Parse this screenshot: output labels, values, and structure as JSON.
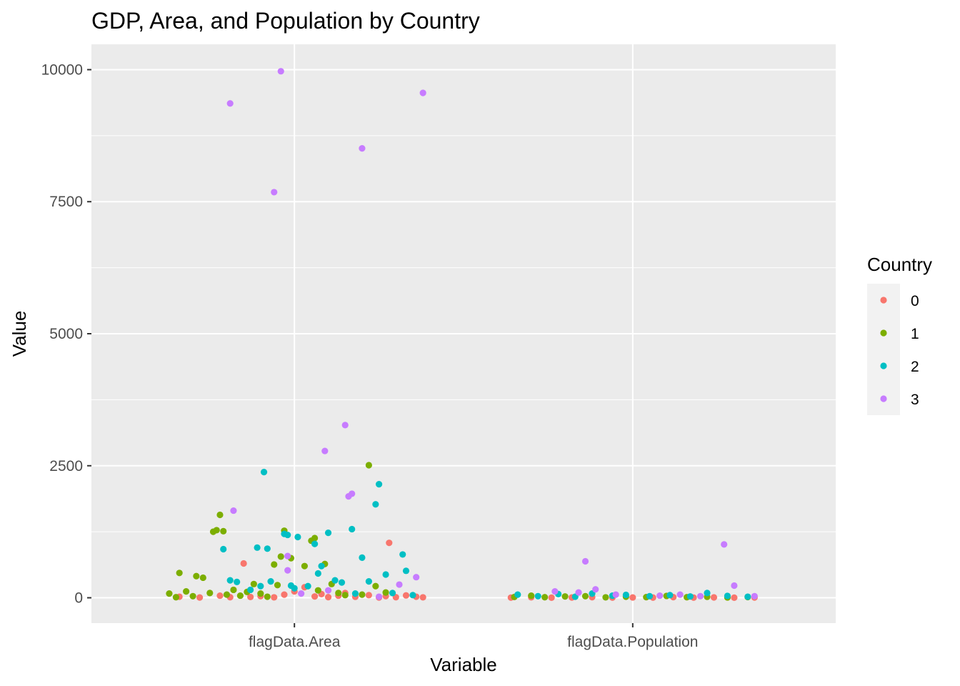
{
  "chart_data": {
    "type": "scatter",
    "title": "GDP, Area, and Population by Country",
    "xlabel": "Variable",
    "ylabel": "Value",
    "categories": [
      "flagData.Area",
      "flagData.Population"
    ],
    "y_ticks": [
      0,
      2500,
      5000,
      7500,
      10000
    ],
    "y_tick_labels": [
      "0",
      "2500",
      "5000",
      "7500",
      "10000"
    ],
    "ylim": [
      -480,
      10480
    ],
    "grid": true,
    "legend": {
      "title": "Country",
      "position": "right",
      "entries": [
        "0",
        "1",
        "2",
        "3"
      ]
    },
    "colors": {
      "0": "#F8766D",
      "1": "#7CAE00",
      "2": "#00BFC4",
      "3": "#C77CFF",
      "panel": "#EBEBEB",
      "grid": "#FFFFFF"
    },
    "series": [
      {
        "name": "0",
        "points": [
          [
            "flagData.Area",
            -0.34,
            20
          ],
          [
            "flagData.Area",
            -0.28,
            5
          ],
          [
            "flagData.Area",
            -0.22,
            40
          ],
          [
            "flagData.Area",
            -0.19,
            10
          ],
          [
            "flagData.Area",
            -0.15,
            650
          ],
          [
            "flagData.Area",
            -0.13,
            15
          ],
          [
            "flagData.Area",
            -0.1,
            30
          ],
          [
            "flagData.Area",
            -0.06,
            8
          ],
          [
            "flagData.Area",
            -0.03,
            60
          ],
          [
            "flagData.Area",
            0.0,
            120
          ],
          [
            "flagData.Area",
            0.03,
            200
          ],
          [
            "flagData.Area",
            0.06,
            25
          ],
          [
            "flagData.Area",
            0.08,
            70
          ],
          [
            "flagData.Area",
            0.1,
            12
          ],
          [
            "flagData.Area",
            0.13,
            40
          ],
          [
            "flagData.Area",
            0.15,
            90
          ],
          [
            "flagData.Area",
            0.18,
            18
          ],
          [
            "flagData.Area",
            0.22,
            50
          ],
          [
            "flagData.Area",
            0.25,
            5
          ],
          [
            "flagData.Area",
            0.27,
            30
          ],
          [
            "flagData.Area",
            0.28,
            1040
          ],
          [
            "flagData.Area",
            0.3,
            10
          ],
          [
            "flagData.Area",
            0.33,
            45
          ],
          [
            "flagData.Area",
            0.36,
            20
          ],
          [
            "flagData.Area",
            0.38,
            8
          ],
          [
            "flagData.Population",
            -0.36,
            3
          ],
          [
            "flagData.Population",
            -0.3,
            8
          ],
          [
            "flagData.Population",
            -0.24,
            2
          ],
          [
            "flagData.Population",
            -0.18,
            5
          ],
          [
            "flagData.Population",
            -0.12,
            10
          ],
          [
            "flagData.Population",
            -0.06,
            3
          ],
          [
            "flagData.Population",
            0.0,
            6
          ],
          [
            "flagData.Population",
            0.06,
            4
          ],
          [
            "flagData.Population",
            0.12,
            12
          ],
          [
            "flagData.Population",
            0.18,
            3
          ],
          [
            "flagData.Population",
            0.24,
            7
          ],
          [
            "flagData.Population",
            0.3,
            2
          ],
          [
            "flagData.Population",
            0.36,
            5
          ]
        ]
      },
      {
        "name": "1",
        "points": [
          [
            "flagData.Area",
            -0.37,
            80
          ],
          [
            "flagData.Area",
            -0.35,
            10
          ],
          [
            "flagData.Area",
            -0.34,
            470
          ],
          [
            "flagData.Area",
            -0.32,
            120
          ],
          [
            "flagData.Area",
            -0.3,
            30
          ],
          [
            "flagData.Area",
            -0.29,
            410
          ],
          [
            "flagData.Area",
            -0.27,
            380
          ],
          [
            "flagData.Area",
            -0.25,
            90
          ],
          [
            "flagData.Area",
            -0.24,
            1250
          ],
          [
            "flagData.Area",
            -0.23,
            1280
          ],
          [
            "flagData.Area",
            -0.22,
            1570
          ],
          [
            "flagData.Area",
            -0.21,
            1260
          ],
          [
            "flagData.Area",
            -0.2,
            60
          ],
          [
            "flagData.Area",
            -0.18,
            150
          ],
          [
            "flagData.Area",
            -0.16,
            40
          ],
          [
            "flagData.Area",
            -0.14,
            110
          ],
          [
            "flagData.Area",
            -0.12,
            260
          ],
          [
            "flagData.Area",
            -0.1,
            80
          ],
          [
            "flagData.Area",
            -0.08,
            20
          ],
          [
            "flagData.Area",
            -0.06,
            630
          ],
          [
            "flagData.Area",
            -0.05,
            240
          ],
          [
            "flagData.Area",
            -0.04,
            780
          ],
          [
            "flagData.Area",
            -0.03,
            1270
          ],
          [
            "flagData.Area",
            -0.01,
            750
          ],
          [
            "flagData.Area",
            0.03,
            600
          ],
          [
            "flagData.Area",
            0.05,
            1080
          ],
          [
            "flagData.Area",
            0.06,
            1130
          ],
          [
            "flagData.Area",
            0.07,
            140
          ],
          [
            "flagData.Area",
            0.09,
            640
          ],
          [
            "flagData.Area",
            0.11,
            260
          ],
          [
            "flagData.Area",
            0.13,
            90
          ],
          [
            "flagData.Area",
            0.15,
            50
          ],
          [
            "flagData.Area",
            0.2,
            60
          ],
          [
            "flagData.Area",
            0.22,
            2510
          ],
          [
            "flagData.Area",
            0.24,
            220
          ],
          [
            "flagData.Area",
            0.27,
            100
          ],
          [
            "flagData.Population",
            -0.35,
            15
          ],
          [
            "flagData.Population",
            -0.3,
            40
          ],
          [
            "flagData.Population",
            -0.26,
            10
          ],
          [
            "flagData.Population",
            -0.2,
            25
          ],
          [
            "flagData.Population",
            -0.14,
            30
          ],
          [
            "flagData.Population",
            -0.08,
            8
          ],
          [
            "flagData.Population",
            -0.02,
            20
          ],
          [
            "flagData.Population",
            0.04,
            12
          ],
          [
            "flagData.Population",
            0.1,
            35
          ],
          [
            "flagData.Population",
            0.16,
            10
          ],
          [
            "flagData.Population",
            0.22,
            18
          ],
          [
            "flagData.Population",
            0.28,
            6
          ],
          [
            "flagData.Population",
            0.34,
            14
          ]
        ]
      },
      {
        "name": "2",
        "points": [
          [
            "flagData.Area",
            -0.21,
            920
          ],
          [
            "flagData.Area",
            -0.19,
            330
          ],
          [
            "flagData.Area",
            -0.17,
            300
          ],
          [
            "flagData.Area",
            -0.13,
            150
          ],
          [
            "flagData.Area",
            -0.11,
            950
          ],
          [
            "flagData.Area",
            -0.1,
            220
          ],
          [
            "flagData.Area",
            -0.09,
            2380
          ],
          [
            "flagData.Area",
            -0.08,
            930
          ],
          [
            "flagData.Area",
            -0.07,
            310
          ],
          [
            "flagData.Area",
            -0.03,
            1210
          ],
          [
            "flagData.Area",
            -0.02,
            1190
          ],
          [
            "flagData.Area",
            -0.01,
            230
          ],
          [
            "flagData.Area",
            0.0,
            180
          ],
          [
            "flagData.Area",
            0.01,
            1150
          ],
          [
            "flagData.Area",
            0.04,
            220
          ],
          [
            "flagData.Area",
            0.06,
            1020
          ],
          [
            "flagData.Area",
            0.07,
            460
          ],
          [
            "flagData.Area",
            0.08,
            600
          ],
          [
            "flagData.Area",
            0.1,
            1230
          ],
          [
            "flagData.Area",
            0.12,
            330
          ],
          [
            "flagData.Area",
            0.14,
            290
          ],
          [
            "flagData.Area",
            0.17,
            1300
          ],
          [
            "flagData.Area",
            0.18,
            80
          ],
          [
            "flagData.Area",
            0.2,
            760
          ],
          [
            "flagData.Area",
            0.22,
            310
          ],
          [
            "flagData.Area",
            0.24,
            1770
          ],
          [
            "flagData.Area",
            0.25,
            2150
          ],
          [
            "flagData.Area",
            0.27,
            440
          ],
          [
            "flagData.Area",
            0.29,
            90
          ],
          [
            "flagData.Area",
            0.32,
            820
          ],
          [
            "flagData.Area",
            0.33,
            510
          ],
          [
            "flagData.Area",
            0.35,
            50
          ],
          [
            "flagData.Population",
            -0.34,
            60
          ],
          [
            "flagData.Population",
            -0.28,
            30
          ],
          [
            "flagData.Population",
            -0.22,
            70
          ],
          [
            "flagData.Population",
            -0.17,
            20
          ],
          [
            "flagData.Population",
            -0.12,
            80
          ],
          [
            "flagData.Population",
            -0.06,
            40
          ],
          [
            "flagData.Population",
            -0.02,
            55
          ],
          [
            "flagData.Population",
            0.05,
            30
          ],
          [
            "flagData.Population",
            0.11,
            50
          ],
          [
            "flagData.Population",
            0.17,
            25
          ],
          [
            "flagData.Population",
            0.22,
            90
          ],
          [
            "flagData.Population",
            0.28,
            35
          ],
          [
            "flagData.Population",
            0.34,
            20
          ]
        ]
      },
      {
        "name": "3",
        "points": [
          [
            "flagData.Area",
            -0.19,
            9360
          ],
          [
            "flagData.Area",
            -0.18,
            1650
          ],
          [
            "flagData.Area",
            -0.06,
            7680
          ],
          [
            "flagData.Area",
            -0.04,
            9970
          ],
          [
            "flagData.Area",
            -0.02,
            790
          ],
          [
            "flagData.Area",
            -0.02,
            520
          ],
          [
            "flagData.Area",
            0.02,
            80
          ],
          [
            "flagData.Area",
            0.09,
            2780
          ],
          [
            "flagData.Area",
            0.1,
            140
          ],
          [
            "flagData.Area",
            0.15,
            3270
          ],
          [
            "flagData.Area",
            0.16,
            1920
          ],
          [
            "flagData.Area",
            0.17,
            1970
          ],
          [
            "flagData.Area",
            0.2,
            8510
          ],
          [
            "flagData.Area",
            0.25,
            20
          ],
          [
            "flagData.Area",
            0.31,
            250
          ],
          [
            "flagData.Area",
            0.36,
            390
          ],
          [
            "flagData.Area",
            0.38,
            9560
          ],
          [
            "flagData.Population",
            -0.23,
            120
          ],
          [
            "flagData.Population",
            -0.16,
            100
          ],
          [
            "flagData.Population",
            -0.14,
            690
          ],
          [
            "flagData.Population",
            -0.11,
            160
          ],
          [
            "flagData.Population",
            -0.05,
            60
          ],
          [
            "flagData.Population",
            0.08,
            40
          ],
          [
            "flagData.Population",
            0.14,
            60
          ],
          [
            "flagData.Population",
            0.2,
            30
          ],
          [
            "flagData.Population",
            0.27,
            1010
          ],
          [
            "flagData.Population",
            0.3,
            230
          ],
          [
            "flagData.Population",
            0.36,
            30
          ]
        ]
      }
    ]
  }
}
